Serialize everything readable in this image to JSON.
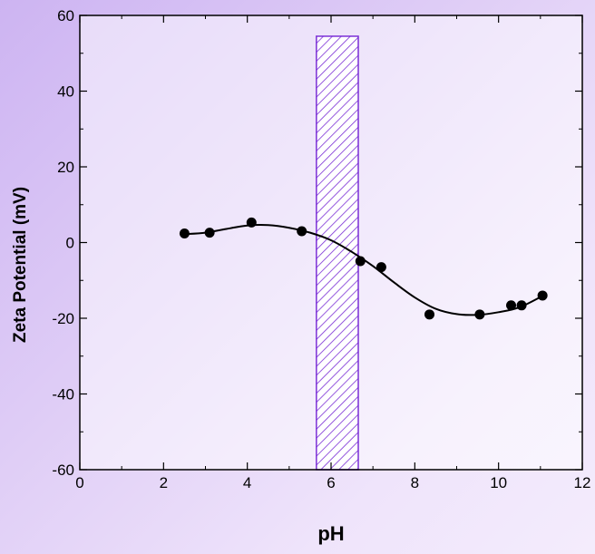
{
  "chart_data": {
    "type": "scatter",
    "title": "",
    "xlabel": "pH",
    "ylabel": "Zeta Potential (mV)",
    "xlim": [
      0,
      12
    ],
    "ylim": [
      -60,
      60
    ],
    "xticks": [
      0,
      2,
      4,
      6,
      8,
      10,
      12
    ],
    "yticks": [
      -60,
      -40,
      -20,
      0,
      20,
      40,
      60
    ],
    "series": [
      {
        "points": [
          {
            "x": 2.5,
            "y": 2.4
          },
          {
            "x": 3.1,
            "y": 2.6
          },
          {
            "x": 4.1,
            "y": 5.3
          },
          {
            "x": 5.3,
            "y": 3.0
          },
          {
            "x": 6.7,
            "y": -4.9
          },
          {
            "x": 7.2,
            "y": -6.5
          },
          {
            "x": 8.35,
            "y": -19.0
          },
          {
            "x": 9.55,
            "y": -19.0
          },
          {
            "x": 10.3,
            "y": -16.6
          },
          {
            "x": 10.55,
            "y": -16.6
          },
          {
            "x": 11.05,
            "y": -14.0
          }
        ]
      }
    ],
    "fit_curve": [
      {
        "x": 2.5,
        "y": 2.2
      },
      {
        "x": 3.0,
        "y": 2.6
      },
      {
        "x": 3.5,
        "y": 3.6
      },
      {
        "x": 4.0,
        "y": 4.5
      },
      {
        "x": 4.5,
        "y": 4.6
      },
      {
        "x": 5.0,
        "y": 3.9
      },
      {
        "x": 5.5,
        "y": 2.6
      },
      {
        "x": 6.0,
        "y": 0.6
      },
      {
        "x": 6.5,
        "y": -2.5
      },
      {
        "x": 7.0,
        "y": -6.2
      },
      {
        "x": 7.5,
        "y": -10.5
      },
      {
        "x": 8.0,
        "y": -14.5
      },
      {
        "x": 8.5,
        "y": -17.5
      },
      {
        "x": 9.0,
        "y": -18.9
      },
      {
        "x": 9.5,
        "y": -19.1
      },
      {
        "x": 10.0,
        "y": -18.4
      },
      {
        "x": 10.5,
        "y": -17.1
      },
      {
        "x": 11.05,
        "y": -14.1
      }
    ],
    "shaded_region": {
      "x_start": 5.65,
      "x_end": 6.65,
      "y_top": 54.5,
      "y_bottom": -60,
      "pattern": "diagonal-hatch",
      "color": "#7b2fd6"
    },
    "grid": false,
    "legend": "none",
    "colors": {
      "marker": "#000000",
      "curve": "#000000",
      "axis": "#000000"
    }
  }
}
